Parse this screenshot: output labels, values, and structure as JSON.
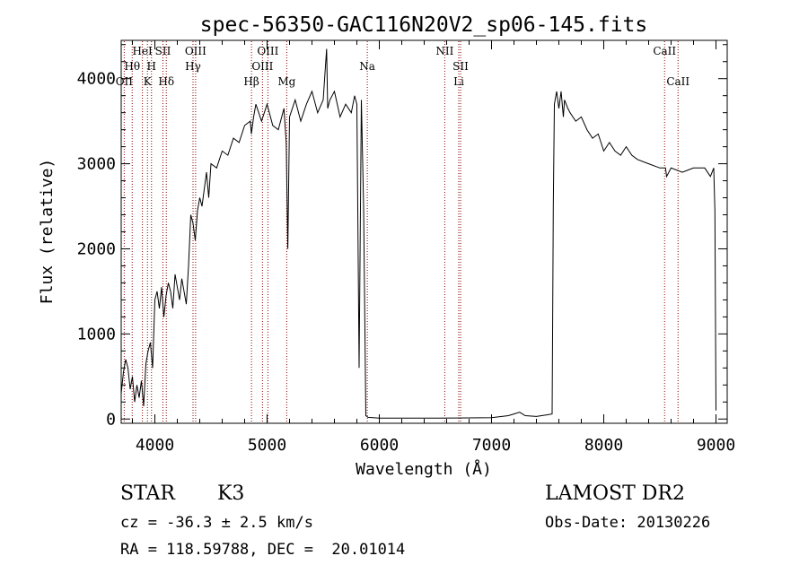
{
  "chart_data": {
    "type": "line",
    "title": "spec-56350-GAC116N20V2_sp06-145.fits",
    "xlabel": "Wavelength (Å)",
    "ylabel": "Flux (relative)",
    "xlim": [
      3700,
      9100
    ],
    "ylim": [
      -50,
      4450
    ],
    "x_ticks": [
      4000,
      5000,
      6000,
      7000,
      8000,
      9000
    ],
    "y_ticks": [
      0,
      1000,
      2000,
      3000,
      4000
    ],
    "x_tick_labels": [
      "4000",
      "5000",
      "6000",
      "7000",
      "8000",
      "9000"
    ],
    "y_tick_labels": [
      "0",
      "1000",
      "2000",
      "3000",
      "4000"
    ],
    "grid": false,
    "line_color": "#000000",
    "marker_color": "#8b0000",
    "series": [
      {
        "x": [
          3700,
          3720,
          3740,
          3760,
          3780,
          3800,
          3820,
          3840,
          3860,
          3880,
          3900,
          3920,
          3940,
          3960,
          3980,
          4000,
          4020,
          4040,
          4060,
          4080,
          4100,
          4120,
          4140,
          4160,
          4180,
          4200,
          4220,
          4240,
          4260,
          4280,
          4300,
          4320,
          4340,
          4360,
          4380,
          4400,
          4420,
          4440,
          4460,
          4480,
          4500,
          4550,
          4600,
          4650,
          4700,
          4750,
          4800,
          4850,
          4860,
          4880,
          4900,
          4950,
          5000,
          5050,
          5100,
          5150,
          5170,
          5185,
          5200,
          5250,
          5300,
          5350,
          5400,
          5450,
          5500,
          5530,
          5540,
          5560,
          5600,
          5650,
          5700,
          5750,
          5780,
          5800,
          5820,
          5840,
          5860,
          5880,
          5900,
          6000,
          6500,
          7000,
          7150,
          7200,
          7250,
          7300,
          7400,
          7500,
          7540,
          7550,
          7560,
          7580,
          7600,
          7620,
          7640,
          7650,
          7680,
          7700,
          7750,
          7800,
          7850,
          7900,
          7950,
          8000,
          8050,
          8100,
          8150,
          8200,
          8250,
          8300,
          8400,
          8500,
          8550,
          8560,
          8600,
          8700,
          8800,
          8900,
          8950,
          8980,
          8990,
          9000
        ],
        "y": [
          300,
          550,
          700,
          600,
          350,
          500,
          200,
          400,
          250,
          450,
          150,
          650,
          800,
          900,
          600,
          1400,
          1500,
          1300,
          1550,
          1200,
          1450,
          1600,
          1500,
          1300,
          1700,
          1550,
          1400,
          1650,
          1500,
          1350,
          1800,
          2400,
          2300,
          2100,
          2450,
          2600,
          2500,
          2700,
          2900,
          2600,
          3000,
          2950,
          3150,
          3100,
          3300,
          3250,
          3450,
          3500,
          3350,
          3550,
          3700,
          3500,
          3700,
          3450,
          3400,
          3650,
          3250,
          2000,
          3550,
          3750,
          3500,
          3700,
          3850,
          3600,
          3750,
          4350,
          3650,
          3750,
          3850,
          3550,
          3700,
          3600,
          3800,
          3700,
          600,
          3750,
          2500,
          40,
          20,
          10,
          10,
          15,
          40,
          60,
          80,
          40,
          30,
          50,
          60,
          2500,
          3700,
          3850,
          3650,
          3850,
          3550,
          3750,
          3650,
          3600,
          3500,
          3550,
          3400,
          3300,
          3350,
          3150,
          3250,
          3150,
          3100,
          3200,
          3100,
          3050,
          3000,
          2950,
          2950,
          2850,
          2950,
          2900,
          2950,
          2950,
          2850,
          2950,
          2450,
          100
        ]
      }
    ],
    "line_markers": [
      {
        "x": 3727,
        "label": "OII",
        "tier": 3
      },
      {
        "x": 3798,
        "label": "Hθ",
        "tier": 2
      },
      {
        "x": 3889,
        "label": "HeI",
        "tier": 1
      },
      {
        "x": 3934,
        "label": "K",
        "tier": 3
      },
      {
        "x": 3970,
        "label": "H",
        "tier": 2
      },
      {
        "x": 4072,
        "label": "SII",
        "tier": 1
      },
      {
        "x": 4102,
        "label": "Hδ",
        "tier": 3
      },
      {
        "x": 4340,
        "label": "Hγ",
        "tier": 2
      },
      {
        "x": 4363,
        "label": "OIII",
        "tier": 1
      },
      {
        "x": 4861,
        "label": "Hβ",
        "tier": 3
      },
      {
        "x": 4959,
        "label": "OIII",
        "tier": 2
      },
      {
        "x": 5007,
        "label": "OIII",
        "tier": 1
      },
      {
        "x": 5175,
        "label": "Mg",
        "tier": 3
      },
      {
        "x": 5893,
        "label": "Na",
        "tier": 2
      },
      {
        "x": 6583,
        "label": "NII",
        "tier": 1
      },
      {
        "x": 6708,
        "label": "Li",
        "tier": 3
      },
      {
        "x": 6724,
        "label": "SII",
        "tier": 2
      },
      {
        "x": 8542,
        "label": "CaII",
        "tier": 1
      },
      {
        "x": 8662,
        "label": "CaII",
        "tier": 3
      }
    ]
  },
  "info": {
    "object_class": "STAR",
    "subclass": "K3",
    "survey": "LAMOST DR2",
    "redshift": "cz = -36.3 ± 2.5 km/s",
    "obs_date": "Obs-Date: 20130226",
    "coords": "RA = 118.59788, DEC =  20.01014"
  }
}
